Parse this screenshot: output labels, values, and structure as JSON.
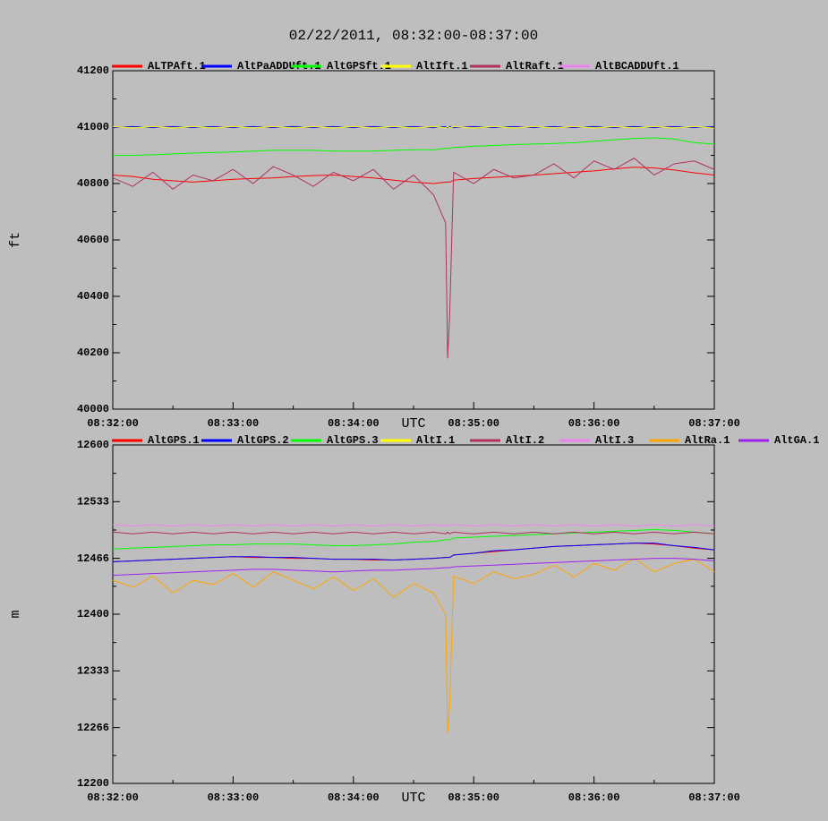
{
  "chart_data": [
    {
      "type": "line",
      "title": "02/22/2011, 08:32:00-08:37:00",
      "ylabel": "ft",
      "xlabel": "UTC",
      "x": [
        "08:32:00",
        "08:32:10",
        "08:32:20",
        "08:32:30",
        "08:32:40",
        "08:32:50",
        "08:33:00",
        "08:33:10",
        "08:33:20",
        "08:33:30",
        "08:33:40",
        "08:33:50",
        "08:34:00",
        "08:34:10",
        "08:34:20",
        "08:34:30",
        "08:34:40",
        "08:34:46",
        "08:34:47",
        "08:34:48",
        "08:34:50",
        "08:35:00",
        "08:35:10",
        "08:35:20",
        "08:35:30",
        "08:35:40",
        "08:35:50",
        "08:36:00",
        "08:36:10",
        "08:36:20",
        "08:36:30",
        "08:36:40",
        "08:36:50",
        "08:37:00"
      ],
      "xlim": [
        "08:32:00",
        "08:37:00"
      ],
      "xticks": [
        "08:32:00",
        "08:33:00",
        "08:34:00",
        "08:35:00",
        "08:36:00",
        "08:37:00"
      ],
      "ylim": [
        40000,
        41200
      ],
      "yticks": [
        40000,
        40200,
        40400,
        40600,
        40800,
        41000,
        41200
      ],
      "series": [
        {
          "name": "ALTPAft.1",
          "color": "#ff0000",
          "values": [
            40830,
            40825,
            40815,
            40810,
            40805,
            40810,
            40815,
            40818,
            40820,
            40825,
            40828,
            40830,
            40825,
            40820,
            40812,
            40805,
            40800,
            40805,
            40805,
            40805,
            40812,
            40818,
            40822,
            40826,
            40830,
            40835,
            40840,
            40845,
            40852,
            40858,
            40855,
            40848,
            40838,
            40830
          ]
        },
        {
          "name": "AltPaADDUft.1",
          "color": "#0000ff",
          "values": [
            40998,
            41002,
            40998,
            41002,
            40998,
            41002,
            40998,
            41002,
            40998,
            41002,
            40998,
            41002,
            40998,
            41002,
            40998,
            41002,
            40998,
            41002,
            40998,
            41002,
            40998,
            41002,
            40998,
            41002,
            40998,
            41002,
            40998,
            41002,
            40998,
            41002,
            40998,
            41002,
            40998,
            41002
          ]
        },
        {
          "name": "AltGPSft.1",
          "color": "#00ff00",
          "values": [
            40900,
            40900,
            40902,
            40905,
            40908,
            40910,
            40912,
            40915,
            40918,
            40918,
            40918,
            40915,
            40915,
            40915,
            40918,
            40920,
            40920,
            40925,
            40925,
            40925,
            40928,
            40932,
            40935,
            40938,
            40940,
            40942,
            40945,
            40950,
            40955,
            40960,
            40962,
            40958,
            40945,
            40940
          ]
        },
        {
          "name": "AltIft.1",
          "color": "#ffff00",
          "values": [
            41002,
            40997,
            41002,
            40997,
            41002,
            40997,
            41002,
            40997,
            41002,
            40997,
            41002,
            40997,
            41002,
            40997,
            41002,
            40997,
            41002,
            40997,
            41002,
            40997,
            41002,
            40997,
            41002,
            40997,
            41002,
            40997,
            41002,
            40997,
            41002,
            40997,
            41002,
            40997,
            41002,
            40997
          ]
        },
        {
          "name": "AltRaft.1",
          "color": "#b03060",
          "values": [
            40820,
            40790,
            40840,
            40780,
            40830,
            40810,
            40850,
            40800,
            40860,
            40830,
            40790,
            40840,
            40810,
            40850,
            40780,
            40830,
            40760,
            40660,
            40180,
            40330,
            40840,
            40800,
            40850,
            40820,
            40830,
            40870,
            40820,
            40880,
            40850,
            40890,
            40830,
            40870,
            40880,
            40850
          ]
        },
        {
          "name": "AltBCADDUft.1",
          "color": "#ee82ee",
          "values": [
            null,
            null,
            null,
            null,
            null,
            null,
            null,
            null,
            null,
            null,
            null,
            null,
            null,
            null,
            null,
            null,
            null,
            null,
            null,
            null,
            null,
            null,
            null,
            null,
            null,
            null,
            null,
            null,
            null,
            null,
            null,
            null,
            null,
            null
          ]
        }
      ]
    },
    {
      "type": "line",
      "ylabel": "m",
      "xlabel": "UTC",
      "x": [
        "08:32:00",
        "08:32:10",
        "08:32:20",
        "08:32:30",
        "08:32:40",
        "08:32:50",
        "08:33:00",
        "08:33:10",
        "08:33:20",
        "08:33:30",
        "08:33:40",
        "08:33:50",
        "08:34:00",
        "08:34:10",
        "08:34:20",
        "08:34:30",
        "08:34:40",
        "08:34:46",
        "08:34:47",
        "08:34:48",
        "08:34:50",
        "08:35:00",
        "08:35:10",
        "08:35:20",
        "08:35:30",
        "08:35:40",
        "08:35:50",
        "08:36:00",
        "08:36:10",
        "08:36:20",
        "08:36:30",
        "08:36:40",
        "08:36:50",
        "08:37:00"
      ],
      "xlim": [
        "08:32:00",
        "08:37:00"
      ],
      "xticks": [
        "08:32:00",
        "08:33:00",
        "08:34:00",
        "08:35:00",
        "08:36:00",
        "08:37:00"
      ],
      "ylim": [
        12200,
        12600
      ],
      "yticks": [
        12200,
        12266,
        12333,
        12400,
        12466,
        12533,
        12600
      ],
      "series": [
        {
          "name": "AltGPS.1",
          "color": "#ff0000",
          "values": [
            12462,
            12463,
            12464,
            12465,
            12466,
            12467,
            12468,
            12467,
            12467,
            12466,
            12466,
            12465,
            12465,
            12464,
            12464,
            12465,
            12466,
            12467,
            12467,
            12467,
            12470,
            12472,
            12474,
            12476,
            12478,
            12480,
            12481,
            12482,
            12483,
            12484,
            12483,
            12481,
            12478,
            12476
          ]
        },
        {
          "name": "AltGPS.2",
          "color": "#0000ff",
          "values": [
            12462,
            12463,
            12464,
            12465,
            12466,
            12467,
            12468,
            12468,
            12467,
            12467,
            12466,
            12465,
            12465,
            12465,
            12464,
            12465,
            12466,
            12467,
            12467,
            12467,
            12470,
            12472,
            12475,
            12476,
            12478,
            12480,
            12481,
            12482,
            12483,
            12484,
            12484,
            12481,
            12479,
            12476
          ]
        },
        {
          "name": "AltGPS.3",
          "color": "#00ff00",
          "values": [
            12477,
            12478,
            12479,
            12480,
            12481,
            12482,
            12482,
            12483,
            12483,
            12483,
            12482,
            12481,
            12481,
            12482,
            12483,
            12485,
            12486,
            12488,
            12488,
            12488,
            12490,
            12491,
            12492,
            12493,
            12494,
            12495,
            12496,
            12497,
            12498,
            12499,
            12500,
            12499,
            12497,
            12495
          ]
        },
        {
          "name": "AltI.1",
          "color": "#ffff00",
          "values": [
            null,
            null,
            null,
            null,
            null,
            null,
            null,
            null,
            null,
            null,
            null,
            null,
            null,
            null,
            null,
            null,
            null,
            null,
            null,
            null,
            null,
            null,
            null,
            null,
            null,
            null,
            null,
            null,
            null,
            null,
            null,
            null,
            null,
            null
          ]
        },
        {
          "name": "AltI.2",
          "color": "#b03060",
          "values": [
            12497,
            12495,
            12497,
            12495,
            12497,
            12495,
            12497,
            12495,
            12497,
            12495,
            12497,
            12495,
            12497,
            12495,
            12497,
            12495,
            12497,
            12495,
            12497,
            12495,
            12497,
            12495,
            12497,
            12495,
            12497,
            12495,
            12497,
            12495,
            12497,
            12495,
            12497,
            12495,
            12497,
            12495
          ]
        },
        {
          "name": "AltI.3",
          "color": "#ee82ee",
          "values": [
            12506,
            12504,
            12506,
            12504,
            12506,
            12504,
            12506,
            12504,
            12506,
            12504,
            12506,
            12504,
            12506,
            12504,
            12506,
            12504,
            12506,
            12504,
            12506,
            12504,
            12506,
            12504,
            12506,
            12504,
            12506,
            12504,
            12506,
            12504,
            12506,
            12504,
            12506,
            12504,
            12506,
            12504
          ]
        },
        {
          "name": "AltRa.1",
          "color": "#ffa500",
          "values": [
            12440,
            12432,
            12445,
            12425,
            12440,
            12435,
            12448,
            12432,
            12450,
            12440,
            12430,
            12444,
            12428,
            12442,
            12420,
            12436,
            12425,
            12400,
            12260,
            12290,
            12445,
            12436,
            12450,
            12442,
            12447,
            12458,
            12444,
            12460,
            12452,
            12466,
            12450,
            12460,
            12465,
            12450
          ]
        },
        {
          "name": "AltGA.1",
          "color": "#a020f0",
          "values": [
            12446,
            12447,
            12448,
            12449,
            12450,
            12451,
            12452,
            12453,
            12453,
            12452,
            12451,
            12450,
            12451,
            12452,
            12452,
            12453,
            12454,
            12455,
            12455,
            12455,
            12456,
            12457,
            12458,
            12459,
            12460,
            12461,
            12462,
            12463,
            12464,
            12465,
            12466,
            12466,
            12465,
            12463
          ]
        }
      ]
    }
  ]
}
